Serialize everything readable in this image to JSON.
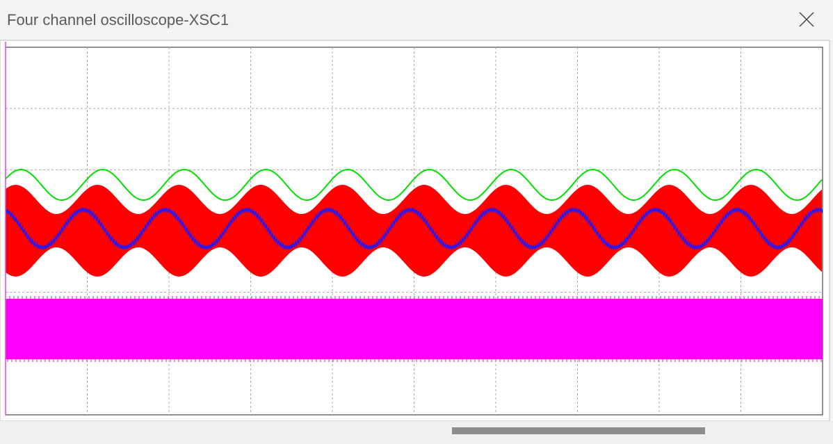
{
  "window": {
    "title": "Four channel oscilloscope-XSC1"
  }
}
